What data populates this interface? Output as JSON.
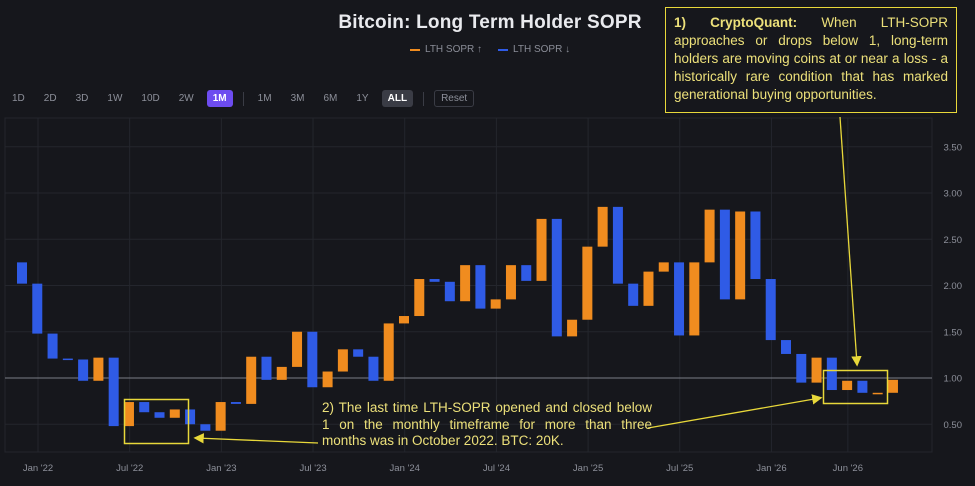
{
  "title": "Bitcoin: Long Term Holder SOPR",
  "legend": {
    "up_label": "LTH SOPR ↑",
    "down_label": "LTH SOPR ↓",
    "up_color": "#f08c1f",
    "down_color": "#2f5be6"
  },
  "toolbar": {
    "left": [
      "1D",
      "2D",
      "3D",
      "1W",
      "10D",
      "2W",
      "1M"
    ],
    "right": [
      "1M",
      "3M",
      "6M",
      "1Y",
      "ALL"
    ],
    "reset": "Reset",
    "active_interval": "1M",
    "active_range": "ALL"
  },
  "callout1": {
    "bold": "1) CryptoQuant:",
    "text": " When LTH-SOPR approaches or drops below 1, long-term holders are moving coins at or near a loss - a historically rare condition that has marked generational buying opportunities."
  },
  "callout2": {
    "text": "2) The last time LTH-SOPR opened and closed below 1 on the monthly timeframe for more than three months was in October 2022. BTC: 20K."
  },
  "chart_data": {
    "type": "candlestick",
    "reference_line": 1.0,
    "y_axis": {
      "ticks": [
        "3.50",
        "3.00",
        "2.50",
        "2.00",
        "1.50",
        "1.00",
        "0.50"
      ],
      "range": [
        0.3,
        3.65
      ],
      "side": "right"
    },
    "x_axis": {
      "ticks": [
        "Jan '22",
        "Jul '22",
        "Jan '23",
        "Jul '23",
        "Jan '24",
        "Jul '24",
        "Jan '25",
        "Jul '25",
        "Jan '26",
        "Jun '26"
      ]
    },
    "series": [
      {
        "month": "2022-01",
        "open": 2.25,
        "close": 2.02
      },
      {
        "month": "2022-02",
        "open": 2.02,
        "close": 1.48
      },
      {
        "month": "2022-03",
        "open": 1.48,
        "close": 1.21
      },
      {
        "month": "2022-04",
        "open": 1.21,
        "close": 1.2
      },
      {
        "month": "2022-05",
        "open": 1.2,
        "close": 0.97
      },
      {
        "month": "2022-06",
        "open": 0.97,
        "close": 1.22
      },
      {
        "month": "2022-07",
        "open": 1.22,
        "close": 0.48
      },
      {
        "month": "2022-08",
        "open": 0.48,
        "close": 0.74
      },
      {
        "month": "2022-09",
        "open": 0.74,
        "close": 0.63
      },
      {
        "month": "2022-10",
        "open": 0.63,
        "close": 0.57
      },
      {
        "month": "2022-11",
        "open": 0.57,
        "close": 0.66
      },
      {
        "month": "2022-12",
        "open": 0.66,
        "close": 0.5
      },
      {
        "month": "2023-01",
        "open": 0.5,
        "close": 0.43
      },
      {
        "month": "2023-02",
        "open": 0.43,
        "close": 0.74
      },
      {
        "month": "2023-03",
        "open": 0.74,
        "close": 0.72
      },
      {
        "month": "2023-04",
        "open": 0.72,
        "close": 1.23
      },
      {
        "month": "2023-05",
        "open": 1.23,
        "close": 0.98
      },
      {
        "month": "2023-06",
        "open": 0.98,
        "close": 1.12
      },
      {
        "month": "2023-07",
        "open": 1.12,
        "close": 1.5
      },
      {
        "month": "2023-08",
        "open": 1.5,
        "close": 0.9
      },
      {
        "month": "2023-09",
        "open": 0.9,
        "close": 1.07
      },
      {
        "month": "2023-10",
        "open": 1.07,
        "close": 1.31
      },
      {
        "month": "2023-11",
        "open": 1.31,
        "close": 1.23
      },
      {
        "month": "2023-12",
        "open": 1.23,
        "close": 0.97
      },
      {
        "month": "2024-01",
        "open": 0.97,
        "close": 1.59
      },
      {
        "month": "2024-02",
        "open": 1.59,
        "close": 1.67
      },
      {
        "month": "2024-03",
        "open": 1.67,
        "close": 2.07
      },
      {
        "month": "2024-04",
        "open": 2.07,
        "close": 2.04
      },
      {
        "month": "2024-05",
        "open": 2.04,
        "close": 1.83
      },
      {
        "month": "2024-06",
        "open": 1.83,
        "close": 2.22
      },
      {
        "month": "2024-07",
        "open": 2.22,
        "close": 1.75
      },
      {
        "month": "2024-08",
        "open": 1.75,
        "close": 1.85
      },
      {
        "month": "2024-09",
        "open": 1.85,
        "close": 2.22
      },
      {
        "month": "2024-10",
        "open": 2.22,
        "close": 2.05
      },
      {
        "month": "2024-11",
        "open": 2.05,
        "close": 2.72
      },
      {
        "month": "2024-12",
        "open": 2.72,
        "close": 1.45
      },
      {
        "month": "2025-01",
        "open": 1.45,
        "close": 1.63
      },
      {
        "month": "2025-02",
        "open": 1.63,
        "close": 2.42
      },
      {
        "month": "2025-03",
        "open": 2.42,
        "close": 2.85
      },
      {
        "month": "2025-04",
        "open": 2.85,
        "close": 2.02
      },
      {
        "month": "2025-05",
        "open": 2.02,
        "close": 1.78
      },
      {
        "month": "2025-06",
        "open": 1.78,
        "close": 2.15
      },
      {
        "month": "2025-07",
        "open": 2.15,
        "close": 2.25
      },
      {
        "month": "2025-08",
        "open": 2.25,
        "close": 1.46
      },
      {
        "month": "2025-09",
        "open": 1.46,
        "close": 2.25
      },
      {
        "month": "2025-10",
        "open": 2.25,
        "close": 2.82
      },
      {
        "month": "2025-11",
        "open": 2.82,
        "close": 1.85
      },
      {
        "month": "2025-12",
        "open": 1.85,
        "close": 2.8
      },
      {
        "month": "2026-01",
        "open": 2.8,
        "close": 2.07
      },
      {
        "month": "2026-02",
        "open": 2.07,
        "close": 1.41
      },
      {
        "month": "2026-03",
        "open": 1.41,
        "close": 1.26
      },
      {
        "month": "2026-04",
        "open": 1.26,
        "close": 0.95
      },
      {
        "month": "2026-05",
        "open": 0.95,
        "close": 1.22
      },
      {
        "month": "2026-06",
        "open": 1.22,
        "close": 0.87
      },
      {
        "month": "2026-07",
        "open": 0.87,
        "close": 0.97
      },
      {
        "month": "2026-08",
        "open": 0.97,
        "close": 0.84
      },
      {
        "month": "2026-09",
        "open": 0.84,
        "close": 0.84
      },
      {
        "month": "2026-10",
        "open": 0.84,
        "close": 0.98
      }
    ]
  }
}
